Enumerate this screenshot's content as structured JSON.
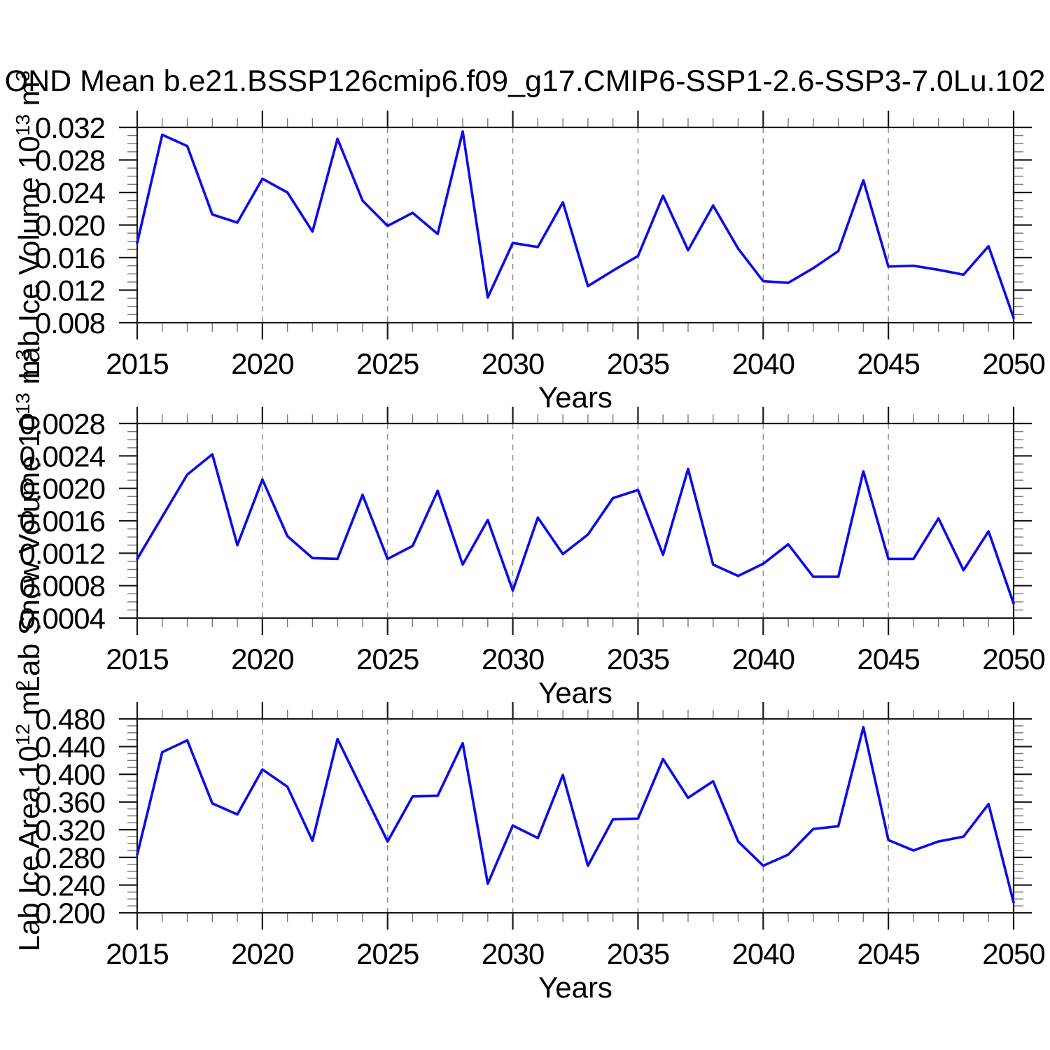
{
  "title": "OND Mean b.e21.BSSP126cmip6.f09_g17.CMIP6-SSP1-2.6-SSP3-7.0Lu.102",
  "figure": {
    "background": "#ffffff",
    "line_color": "#0b0beb",
    "grid_color": "#8a8a8a",
    "frame_color": "#1a1a1a",
    "tick_minor_color": "#777777",
    "text_color": "#000000"
  },
  "x_axis": {
    "label": "Years",
    "min": 2015,
    "max": 2050,
    "major_ticks": [
      2015,
      2020,
      2025,
      2030,
      2035,
      2040,
      2045,
      2050
    ],
    "minor_step": 1,
    "gridlines": [
      2020,
      2025,
      2030,
      2035,
      2040,
      2045
    ],
    "years": [
      2015,
      2016,
      2017,
      2018,
      2019,
      2020,
      2021,
      2022,
      2023,
      2024,
      2025,
      2026,
      2027,
      2028,
      2029,
      2030,
      2031,
      2032,
      2033,
      2034,
      2035,
      2036,
      2037,
      2038,
      2039,
      2040,
      2041,
      2042,
      2043,
      2044,
      2045,
      2046,
      2047,
      2048,
      2049,
      2050
    ]
  },
  "chart_data": [
    {
      "type": "line",
      "name": "lab-ice-volume",
      "title": "",
      "xlabel": "Years",
      "ylabel": "Lab Ice Volume 10^13 m^3",
      "ylabel_segments": [
        {
          "t": "Lab Ice Volume 10"
        },
        {
          "t": "13",
          "sup": true
        },
        {
          "t": " m"
        },
        {
          "t": "3",
          "sup": true
        }
      ],
      "ylim": [
        0.008,
        0.032
      ],
      "ytick_values": [
        0.008,
        0.012,
        0.016,
        0.02,
        0.024,
        0.028,
        0.032
      ],
      "ytick_labels": [
        "0.008",
        "0.012",
        "0.016",
        "0.020",
        "0.024",
        "0.028",
        "0.032"
      ],
      "yminor_step": 0.001,
      "grid": "vertical-dashed",
      "legend": "none",
      "values": [
        0.0178,
        0.0311,
        0.0297,
        0.0213,
        0.0203,
        0.0257,
        0.024,
        0.0192,
        0.0306,
        0.023,
        0.0199,
        0.0215,
        0.0189,
        0.0315,
        0.0111,
        0.0178,
        0.0173,
        0.0228,
        0.0125,
        0.0144,
        0.0162,
        0.0236,
        0.0169,
        0.0224,
        0.0171,
        0.0131,
        0.0129,
        0.0147,
        0.0168,
        0.0255,
        0.0149,
        0.015,
        0.0145,
        0.0139,
        0.0174,
        0.0086
      ]
    },
    {
      "type": "line",
      "name": "lab-snow-volume",
      "title": "",
      "xlabel": "Years",
      "ylabel": "Lab Snow Volume 10^13 m^3",
      "ylabel_segments": [
        {
          "t": "Lab Snow Volume 10"
        },
        {
          "t": "13",
          "sup": true
        },
        {
          "t": " m"
        },
        {
          "t": "3",
          "sup": true
        }
      ],
      "ylim": [
        0.0004,
        0.0028
      ],
      "ytick_values": [
        0.0004,
        0.0008,
        0.0012,
        0.0016,
        0.002,
        0.0024,
        0.0028
      ],
      "ytick_labels": [
        "0.0004",
        "0.0008",
        "0.0012",
        "0.0016",
        "0.0020",
        "0.0024",
        "0.0028"
      ],
      "yminor_step": 0.0001,
      "grid": "vertical-dashed",
      "legend": "none",
      "values": [
        0.00113,
        0.00165,
        0.00217,
        0.00242,
        0.0013,
        0.00211,
        0.00141,
        0.00114,
        0.00113,
        0.00192,
        0.00113,
        0.00129,
        0.00197,
        0.00106,
        0.00161,
        0.00074,
        0.00164,
        0.00119,
        0.00143,
        0.00188,
        0.00198,
        0.00118,
        0.00224,
        0.00106,
        0.00092,
        0.00107,
        0.00131,
        0.00091,
        0.00091,
        0.00221,
        0.00113,
        0.00113,
        0.00163,
        0.00099,
        0.00147,
        0.00058
      ]
    },
    {
      "type": "line",
      "name": "lab-ice-area",
      "title": "",
      "xlabel": "Years",
      "ylabel": "Lab Ice Area 10^12 m^2",
      "ylabel_segments": [
        {
          "t": "Lab Ice Area 10"
        },
        {
          "t": "12",
          "sup": true
        },
        {
          "t": " m"
        },
        {
          "t": "2",
          "sup": true
        }
      ],
      "ylim": [
        0.2,
        0.48
      ],
      "ytick_values": [
        0.2,
        0.24,
        0.28,
        0.32,
        0.36,
        0.4,
        0.44,
        0.48
      ],
      "ytick_labels": [
        "0.200",
        "0.240",
        "0.280",
        "0.320",
        "0.360",
        "0.400",
        "0.440",
        "0.480"
      ],
      "yminor_step": 0.01,
      "grid": "vertical-dashed",
      "legend": "none",
      "values": [
        0.284,
        0.432,
        0.449,
        0.358,
        0.342,
        0.407,
        0.382,
        0.304,
        0.451,
        0.377,
        0.303,
        0.368,
        0.369,
        0.445,
        0.242,
        0.326,
        0.308,
        0.399,
        0.268,
        0.335,
        0.336,
        0.422,
        0.366,
        0.39,
        0.303,
        0.268,
        0.284,
        0.321,
        0.325,
        0.468,
        0.305,
        0.29,
        0.303,
        0.31,
        0.357,
        0.215
      ]
    }
  ]
}
